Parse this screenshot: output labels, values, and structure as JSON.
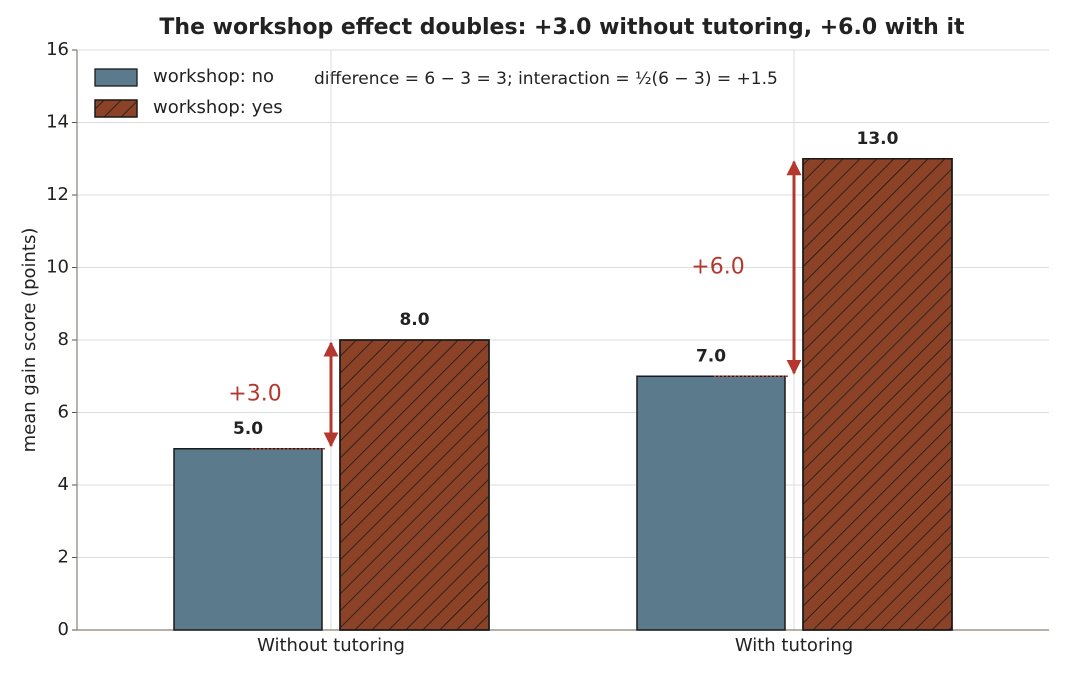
{
  "chart_data": {
    "type": "bar",
    "title": "The workshop effect doubles: +3.0 without tutoring, +6.0 with it",
    "ylabel": "mean gain score (points)",
    "categories": [
      "Without tutoring",
      "With tutoring"
    ],
    "series": [
      {
        "name": "workshop: no",
        "color": "#5b7a8c",
        "values": [
          5,
          7
        ],
        "value_labels": [
          "5.0",
          "7.0"
        ]
      },
      {
        "name": "workshop: yes",
        "color": "#8b4226",
        "hatch": true,
        "values": [
          8,
          13
        ],
        "value_labels": [
          "8.0",
          "13.0"
        ]
      }
    ],
    "ylim": [
      0,
      16
    ],
    "yticks": [
      0,
      2,
      4,
      6,
      8,
      10,
      12,
      14,
      16
    ],
    "grid": true,
    "legend": "upper left",
    "annotations": [
      {
        "text": "+3.0",
        "color": "#b5382f"
      },
      {
        "text": "+6.0",
        "color": "#b5382f"
      }
    ],
    "formula": "difference = 6 − 3 = 3;   interaction = ½(6 − 3) = +1.5"
  }
}
